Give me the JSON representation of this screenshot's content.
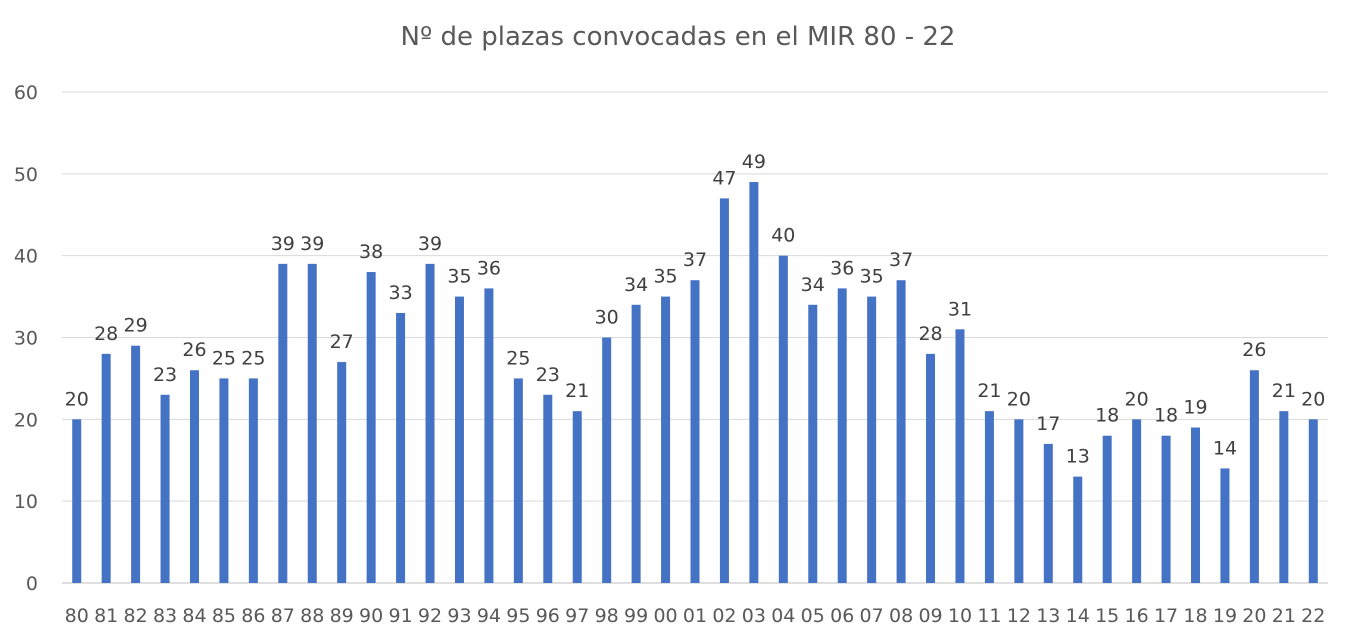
{
  "chart_data": {
    "type": "bar",
    "title": "Nº de plazas convocadas en el MIR 80 - 22",
    "xlabel": "",
    "ylabel": "",
    "ylim": [
      0,
      60
    ],
    "yticks": [
      0,
      10,
      20,
      30,
      40,
      50,
      60
    ],
    "grid": true,
    "legend": "none",
    "bar_color": "#4472c4",
    "categories": [
      "80",
      "81",
      "82",
      "83",
      "84",
      "85",
      "86",
      "87",
      "88",
      "89",
      "90",
      "91",
      "92",
      "93",
      "94",
      "95",
      "96",
      "97",
      "98",
      "99",
      "00",
      "01",
      "02",
      "03",
      "04",
      "05",
      "06",
      "07",
      "08",
      "09",
      "10",
      "11",
      "12",
      "13",
      "14",
      "15",
      "16",
      "17",
      "18",
      "19",
      "20",
      "21",
      "22"
    ],
    "values": [
      20,
      28,
      29,
      23,
      26,
      25,
      25,
      39,
      39,
      27,
      38,
      33,
      39,
      35,
      36,
      25,
      23,
      21,
      30,
      34,
      35,
      37,
      47,
      49,
      40,
      34,
      36,
      35,
      37,
      28,
      31,
      21,
      20,
      17,
      13,
      18,
      20,
      18,
      19,
      14,
      26,
      21,
      20
    ]
  }
}
